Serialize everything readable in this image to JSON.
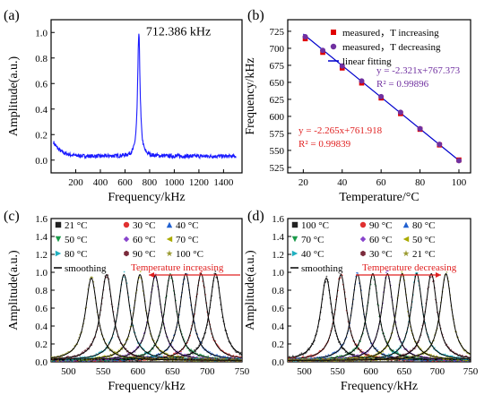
{
  "chart_data": [
    {
      "panel": "(a)",
      "type": "line",
      "xlabel": "Frequency/kHz",
      "ylabel": "Amplitude(a.u.)",
      "xlim": [
        0,
        1550
      ],
      "ylim": [
        -0.1,
        1.1
      ],
      "xticks": [
        200,
        400,
        600,
        800,
        1000,
        1200,
        1400
      ],
      "yticks": [
        0.0,
        0.2,
        0.4,
        0.6,
        0.8,
        1.0
      ],
      "peak_annotation": "712.386 kHz",
      "series": [
        {
          "color": "#1a1aff",
          "description_points": [
            [
              20,
              0.14
            ],
            [
              50,
              0.09
            ],
            [
              100,
              0.07
            ],
            [
              200,
              0.05
            ],
            [
              300,
              0.05
            ],
            [
              400,
              0.05
            ],
            [
              500,
              0.06
            ],
            [
              600,
              0.09
            ],
            [
              650,
              0.14
            ],
            [
              680,
              0.23
            ],
            [
              700,
              0.55
            ],
            [
              712,
              0.99
            ],
            [
              725,
              0.55
            ],
            [
              745,
              0.22
            ],
            [
              780,
              0.12
            ],
            [
              850,
              0.08
            ],
            [
              1000,
              0.05
            ],
            [
              1200,
              0.04
            ],
            [
              1500,
              0.03
            ]
          ]
        }
      ]
    },
    {
      "panel": "(b)",
      "type": "scatter",
      "xlabel": "Temperature/°C",
      "ylabel": "Frequency/kHz",
      "xlim": [
        12,
        106
      ],
      "ylim": [
        517,
        742
      ],
      "xticks": [
        20,
        40,
        60,
        80,
        100
      ],
      "yticks": [
        525,
        550,
        575,
        600,
        625,
        650,
        675,
        700,
        725
      ],
      "legend_position": "top-right",
      "legend": [
        {
          "label": "measured，T increasing",
          "marker": "square",
          "color": "#e00000"
        },
        {
          "label": "measured，T decreasing",
          "marker": "circle",
          "color": "#7030a0"
        },
        {
          "label": "linear fitting",
          "marker": "line",
          "color": "#0000cc"
        }
      ],
      "series": [
        {
          "name": "measured，T increasing",
          "x": [
            21,
            30,
            40,
            50,
            60,
            70,
            80,
            90,
            100
          ],
          "y": [
            714,
            694,
            671,
            649,
            627,
            604,
            581,
            558,
            536
          ]
        },
        {
          "name": "measured，T decreasing",
          "x": [
            21,
            30,
            40,
            50,
            60,
            70,
            80,
            90,
            100
          ],
          "y": [
            717,
            697,
            674,
            652,
            629,
            606,
            582,
            559,
            535
          ]
        }
      ],
      "fit_increasing": {
        "equation": "y = -2.265x+761.918",
        "r2": "R² = 0.99839",
        "slope": -2.265,
        "intercept": 761.918,
        "color": "#e02020"
      },
      "fit_decreasing": {
        "equation": "y = -2.321x+767.373",
        "r2": "R² = 0.99896",
        "slope": -2.321,
        "intercept": 767.373,
        "color": "#7030a0"
      }
    },
    {
      "panel": "(c)",
      "type": "line",
      "xlabel": "Frequency/kHz",
      "ylabel": "Amplitude(a.u.)",
      "xlim": [
        475,
        750
      ],
      "ylim": [
        0,
        1.6
      ],
      "xticks": [
        500,
        550,
        600,
        650,
        700,
        750
      ],
      "yticks": [
        0.0,
        0.2,
        0.4,
        0.6,
        0.8,
        1.0,
        1.2,
        1.4,
        1.6
      ],
      "arrow_label": "Temperature increasing",
      "arrow_direction": "left",
      "legend": [
        {
          "label": "21 °C",
          "marker": "square",
          "color": "#222222"
        },
        {
          "label": "30 °C",
          "marker": "circle",
          "color": "#e03030"
        },
        {
          "label": "40 °C",
          "marker": "triangle-up",
          "color": "#2060d0"
        },
        {
          "label": "50 °C",
          "marker": "triangle-down",
          "color": "#1a9a4a"
        },
        {
          "label": "60 °C",
          "marker": "diamond",
          "color": "#8844cc"
        },
        {
          "label": "70 °C",
          "marker": "triangle-left",
          "color": "#aaaa00"
        },
        {
          "label": "80 °C",
          "marker": "triangle-right",
          "color": "#20b0c0"
        },
        {
          "label": "90 °C",
          "marker": "hexagon",
          "color": "#7a2a3a"
        },
        {
          "label": "100 °C",
          "marker": "star",
          "color": "#9a9a30"
        },
        {
          "label": "smoothing",
          "marker": "line",
          "color": "#000000"
        }
      ],
      "peaks": [
        {
          "center": 712,
          "amplitude": 0.97
        },
        {
          "center": 691,
          "amplitude": 0.97
        },
        {
          "center": 669,
          "amplitude": 0.97
        },
        {
          "center": 647,
          "amplitude": 0.96
        },
        {
          "center": 625,
          "amplitude": 0.95
        },
        {
          "center": 603,
          "amplitude": 0.96
        },
        {
          "center": 580,
          "amplitude": 0.96
        },
        {
          "center": 555,
          "amplitude": 0.96
        },
        {
          "center": 533,
          "amplitude": 0.92
        }
      ]
    },
    {
      "panel": "(d)",
      "type": "line",
      "xlabel": "Frequency/kHz",
      "ylabel": "Amplitude(a.u.)",
      "xlim": [
        475,
        750
      ],
      "ylim": [
        0,
        1.6
      ],
      "xticks": [
        500,
        550,
        600,
        650,
        700,
        750
      ],
      "yticks": [
        0.0,
        0.2,
        0.4,
        0.6,
        0.8,
        1.0,
        1.2,
        1.4,
        1.6
      ],
      "arrow_label": "Temperature decreasing",
      "arrow_direction": "right",
      "legend": [
        {
          "label": "100 °C",
          "marker": "square",
          "color": "#222222"
        },
        {
          "label": "90 °C",
          "marker": "circle",
          "color": "#e03030"
        },
        {
          "label": "80 °C",
          "marker": "triangle-up",
          "color": "#2060d0"
        },
        {
          "label": "70 °C",
          "marker": "triangle-down",
          "color": "#1a9a4a"
        },
        {
          "label": "60 °C",
          "marker": "diamond",
          "color": "#8844cc"
        },
        {
          "label": "50 °C",
          "marker": "triangle-left",
          "color": "#aaaa00"
        },
        {
          "label": "40 °C",
          "marker": "triangle-right",
          "color": "#20b0c0"
        },
        {
          "label": "30 °C",
          "marker": "hexagon",
          "color": "#7a2a3a"
        },
        {
          "label": "21 °C",
          "marker": "star",
          "color": "#9a9a30"
        },
        {
          "label": "smoothing",
          "marker": "line",
          "color": "#000000"
        }
      ],
      "peaks": [
        {
          "center": 533,
          "amplitude": 0.92
        },
        {
          "center": 555,
          "amplitude": 0.96
        },
        {
          "center": 580,
          "amplitude": 0.96
        },
        {
          "center": 603,
          "amplitude": 0.97
        },
        {
          "center": 625,
          "amplitude": 0.97
        },
        {
          "center": 647,
          "amplitude": 0.97
        },
        {
          "center": 669,
          "amplitude": 0.97
        },
        {
          "center": 691,
          "amplitude": 0.97
        },
        {
          "center": 713,
          "amplitude": 0.97
        }
      ]
    }
  ]
}
